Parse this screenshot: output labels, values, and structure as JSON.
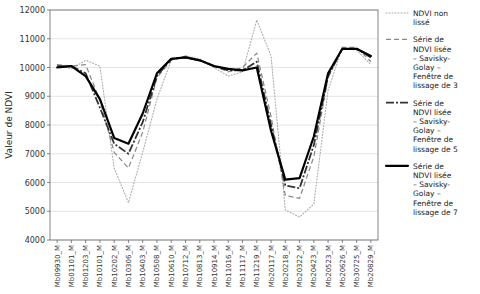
{
  "chart_data": {
    "type": "line",
    "categories": [
      "Mb09930_M",
      "Mb01101_M",
      "Mb01203_M",
      "Mb10101_M",
      "Mb10202_M",
      "Mb10306_M",
      "Mb10403_M",
      "Mb10508_M",
      "Mb10610_M",
      "Mb10712_M",
      "Mb10813_M",
      "Mb10914_M",
      "Mb11016_M",
      "Mb11117_M",
      "Mb11219_M",
      "Mb20117_M",
      "Mb20218_M",
      "Mb20322_M",
      "Mb20423_M",
      "Mb20523_M",
      "Mb20626_M",
      "Mb30725_M",
      "Mb20829_M"
    ],
    "series": [
      {
        "name": "NDVI non\nlissé",
        "color": "#aaaaaa",
        "line_style": "dotted",
        "values": [
          10100,
          9950,
          10250,
          10050,
          6500,
          5300,
          7050,
          8900,
          10250,
          10400,
          10300,
          10000,
          9700,
          9850,
          11650,
          10400,
          5050,
          4800,
          5250,
          9200,
          10700,
          10600,
          10100
        ]
      },
      {
        "name": "Série de\nNDVI lisée\n– Savisky-\nGolay –\nFenêtre de\nlissage de 3",
        "color": "#888888",
        "line_style": "dashed",
        "values": [
          10100,
          10050,
          10100,
          8850,
          7050,
          6500,
          7750,
          9650,
          10250,
          10400,
          10250,
          10050,
          9850,
          10000,
          10500,
          8300,
          5550,
          5450,
          6900,
          9650,
          10700,
          10700,
          10200
        ]
      },
      {
        "name": "Série de\nNDVI lisée\n– Savisky-\nGolay –\nFenêtre de\nlissage de 5",
        "color": "#333333",
        "line_style": "dashdot",
        "values": [
          10050,
          10050,
          9800,
          8600,
          7350,
          7000,
          8100,
          9700,
          10300,
          10350,
          10250,
          10050,
          9900,
          9900,
          10200,
          8000,
          5900,
          5800,
          7300,
          9700,
          10650,
          10650,
          10350
        ]
      },
      {
        "name": "Série de\nNDVI lisée\n– Savisky-\nGolay –\nFenêtre de\nlissage de 7",
        "color": "#000000",
        "line_style": "solid",
        "values": [
          10000,
          10050,
          9700,
          8900,
          7550,
          7350,
          8400,
          9800,
          10300,
          10350,
          10250,
          10050,
          9950,
          9900,
          10000,
          7800,
          6100,
          6150,
          7600,
          9800,
          10650,
          10650,
          10400
        ]
      }
    ],
    "y_label": "Valeur de NDVI",
    "ylim": [
      4000,
      12000
    ],
    "yticks": [
      4000,
      5000,
      6000,
      7000,
      8000,
      9000,
      10000,
      11000,
      12000
    ],
    "grid": true,
    "legend": "right"
  }
}
